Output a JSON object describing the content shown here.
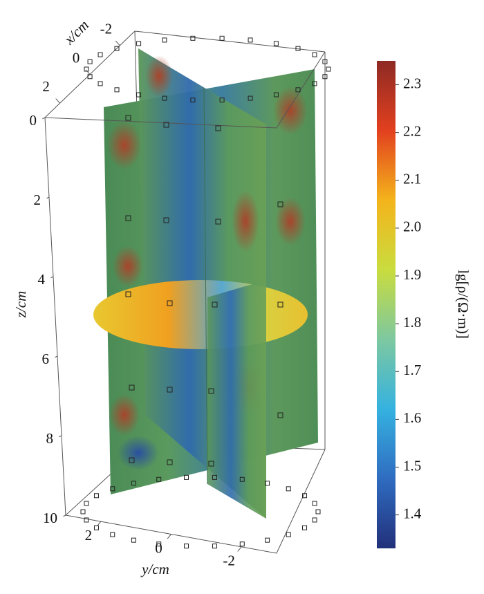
{
  "chart_data": {
    "type": "3d-slice",
    "x_label": "x/cm",
    "y_label": "y/cm",
    "z_label": "z/cm",
    "xlim": [
      3,
      -3
    ],
    "xticks": [
      2,
      0,
      -2
    ],
    "ylim": [
      3,
      -3
    ],
    "yticks": [
      2,
      0,
      -2
    ],
    "zlim": [
      0,
      10
    ],
    "zticks": [
      0,
      2,
      4,
      6,
      8,
      10
    ],
    "colorbar": {
      "label": "lg[ρ/(Ω·m)]",
      "clim": [
        1.33,
        2.35
      ],
      "ticks": [
        1.4,
        1.5,
        1.6,
        1.7,
        1.8,
        1.9,
        {
          "value": 2,
          "label": "2.0"
        },
        2.1,
        2.2,
        2.3
      ],
      "colormap": [
        "#22307a",
        "#2f6cc0",
        "#35b2e0",
        "#7dc8a0",
        "#c9dc3e",
        "#f4b41c",
        "#e2401e",
        "#8e2a24"
      ]
    }
  }
}
